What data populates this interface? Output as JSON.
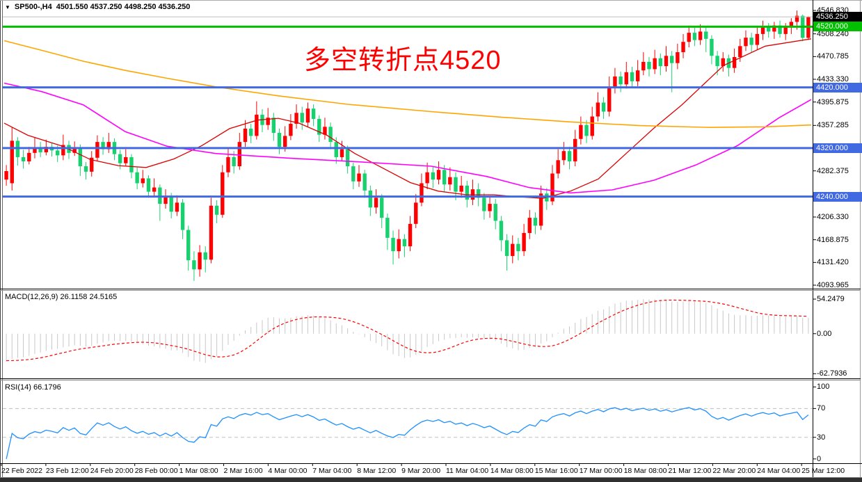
{
  "window": {
    "symbol_dropdown_icon": "▼",
    "symbol": "SP500-,H4",
    "ohlc_text": "4501.550 4537.250 4498.250 4536.250"
  },
  "annotation": {
    "text": "多空转折点4520",
    "color": "#ff0000"
  },
  "indicator_labels": {
    "macd": "MACD(12,26,9) 26.1158 24.5165",
    "rsi": "RSI(14) 66.1796"
  },
  "price_axis": {
    "ticks": [
      {
        "label": "4546.830",
        "price": 4546.83
      },
      {
        "label": "4508.240",
        "price": 4508.24
      },
      {
        "label": "4470.785",
        "price": 4470.785
      },
      {
        "label": "4433.330",
        "price": 4433.33
      },
      {
        "label": "4395.875",
        "price": 4395.875
      },
      {
        "label": "4357.285",
        "price": 4357.285
      },
      {
        "label": "4282.375",
        "price": 4282.375
      },
      {
        "label": "4206.330",
        "price": 4206.33
      },
      {
        "label": "4168.875",
        "price": 4168.875
      },
      {
        "label": "4131.420",
        "price": 4131.42
      },
      {
        "label": "4093.965",
        "price": 4093.965
      }
    ],
    "badges": [
      {
        "label": "4536.250",
        "price": 4536.25,
        "bg": "#000000"
      },
      {
        "label": "4520.000",
        "price": 4520.0,
        "bg": "#00c000"
      },
      {
        "label": "4420.000",
        "price": 4420.0,
        "bg": "#4169e1"
      },
      {
        "label": "4320.000",
        "price": 4320.0,
        "bg": "#4169e1"
      },
      {
        "label": "4240.000",
        "price": 4240.0,
        "bg": "#4169e1"
      }
    ]
  },
  "time_axis": {
    "labels": [
      "22 Feb 2022",
      "23 Feb 12:00",
      "24 Feb 20:00",
      "28 Feb 00:00",
      "1 Mar 08:00",
      "2 Mar 16:00",
      "4 Mar 00:00",
      "7 Mar 04:00",
      "8 Mar 12:00",
      "9 Mar 20:00",
      "11 Mar 04:00",
      "14 Mar 08:00",
      "15 Mar 16:00",
      "17 Mar 00:00",
      "18 Mar 08:00",
      "21 Mar 12:00",
      "22 Mar 20:00",
      "24 Mar 04:00",
      "25 Mar 12:00"
    ]
  },
  "macd_axis": [
    {
      "label": "54.2479",
      "value": 54.2479
    },
    {
      "label": "0.00",
      "value": 0
    },
    {
      "label": "-62.7936",
      "value": -62.7936
    }
  ],
  "rsi_axis": [
    {
      "label": "100",
      "value": 100
    },
    {
      "label": "70",
      "value": 70
    },
    {
      "label": "30",
      "value": 30
    },
    {
      "label": "0",
      "value": 0
    }
  ],
  "colors": {
    "bull": "#ff0000",
    "bear": "#18d16e",
    "ma_fast_red": "#dd0000",
    "ma_mid_magenta": "#ff00ff",
    "ma_slow_orange": "#ffa500",
    "hline_blue": "#4169e1",
    "hline_green": "#00c000",
    "current_price_line": "#c0c0c0",
    "macd_hist": "#c8c8c8",
    "macd_signal": "#ff0000",
    "rsi_line": "#1e90ff",
    "rsi_level": "#c0c0c0",
    "annotation_red": "#ff0000"
  },
  "chart_data": {
    "type": "candlestick",
    "title": "SP500-,H4",
    "symbol": "SP500-",
    "timeframe": "H4",
    "last_bar": {
      "open": 4501.55,
      "high": 4537.25,
      "low": 4498.25,
      "close": 4536.25
    },
    "price_range": {
      "top": 4546.83,
      "bottom": 4093.965
    },
    "current_price": 4536.25,
    "hlines": [
      {
        "price": 4520.0,
        "color": "#00c000",
        "width": 3,
        "name": "bull-bear-pivot"
      },
      {
        "price": 4420.0,
        "color": "#4169e1",
        "width": 3,
        "name": "resistance-4420"
      },
      {
        "price": 4320.0,
        "color": "#4169e1",
        "width": 3,
        "name": "level-4320"
      },
      {
        "price": 4240.0,
        "color": "#4169e1",
        "width": 3,
        "name": "support-4240"
      }
    ],
    "x_labels": [
      "22 Feb 2022",
      "23 Feb 12:00",
      "24 Feb 20:00",
      "28 Feb 00:00",
      "1 Mar 08:00",
      "2 Mar 16:00",
      "4 Mar 00:00",
      "7 Mar 04:00",
      "8 Mar 12:00",
      "9 Mar 20:00",
      "11 Mar 04:00",
      "14 Mar 08:00",
      "15 Mar 16:00",
      "17 Mar 00:00",
      "18 Mar 08:00",
      "21 Mar 12:00",
      "22 Mar 20:00",
      "24 Mar 04:00",
      "25 Mar 12:00"
    ],
    "candles": [
      [
        4268,
        4292,
        4258,
        4282
      ],
      [
        4262,
        4354,
        4250,
        4332
      ],
      [
        4332,
        4338,
        4291,
        4305
      ],
      [
        4305,
        4317,
        4286,
        4298
      ],
      [
        4298,
        4322,
        4293,
        4312
      ],
      [
        4312,
        4338,
        4303,
        4320
      ],
      [
        4320,
        4330,
        4305,
        4313
      ],
      [
        4313,
        4334,
        4308,
        4322
      ],
      [
        4322,
        4328,
        4306,
        4316
      ],
      [
        4316,
        4324,
        4297,
        4308
      ],
      [
        4308,
        4342,
        4300,
        4325
      ],
      [
        4325,
        4332,
        4302,
        4312
      ],
      [
        4312,
        4331,
        4307,
        4320
      ],
      [
        4320,
        4326,
        4274,
        4290
      ],
      [
        4290,
        4297,
        4268,
        4281
      ],
      [
        4281,
        4315,
        4273,
        4304
      ],
      [
        4304,
        4341,
        4298,
        4330
      ],
      [
        4330,
        4338,
        4309,
        4318
      ],
      [
        4318,
        4345,
        4312,
        4330
      ],
      [
        4330,
        4336,
        4300,
        4310
      ],
      [
        4310,
        4317,
        4285,
        4295
      ],
      [
        4295,
        4318,
        4290,
        4305
      ],
      [
        4305,
        4310,
        4270,
        4280
      ],
      [
        4280,
        4288,
        4252,
        4262
      ],
      [
        4262,
        4284,
        4255,
        4270
      ],
      [
        4270,
        4275,
        4238,
        4248
      ],
      [
        4248,
        4270,
        4240,
        4255
      ],
      [
        4255,
        4260,
        4200,
        4228
      ],
      [
        4228,
        4252,
        4220,
        4240
      ],
      [
        4240,
        4246,
        4204,
        4215
      ],
      [
        4215,
        4242,
        4208,
        4230
      ],
      [
        4230,
        4236,
        4170,
        4185
      ],
      [
        4185,
        4192,
        4118,
        4135
      ],
      [
        4135,
        4150,
        4101,
        4120
      ],
      [
        4120,
        4160,
        4108,
        4148
      ],
      [
        4148,
        4158,
        4115,
        4136
      ],
      [
        4136,
        4238,
        4130,
        4225
      ],
      [
        4225,
        4234,
        4196,
        4210
      ],
      [
        4210,
        4292,
        4205,
        4280
      ],
      [
        4280,
        4320,
        4272,
        4305
      ],
      [
        4305,
        4315,
        4278,
        4290
      ],
      [
        4290,
        4345,
        4284,
        4330
      ],
      [
        4330,
        4366,
        4322,
        4352
      ],
      [
        4352,
        4360,
        4328,
        4340
      ],
      [
        4340,
        4397,
        4334,
        4375
      ],
      [
        4375,
        4384,
        4346,
        4358
      ],
      [
        4358,
        4386,
        4350,
        4370
      ],
      [
        4370,
        4378,
        4332,
        4345
      ],
      [
        4345,
        4352,
        4310,
        4322
      ],
      [
        4322,
        4356,
        4314,
        4340
      ],
      [
        4340,
        4376,
        4333,
        4360
      ],
      [
        4360,
        4392,
        4352,
        4378
      ],
      [
        4378,
        4388,
        4350,
        4362
      ],
      [
        4362,
        4395,
        4354,
        4385
      ],
      [
        4385,
        4392,
        4356,
        4368
      ],
      [
        4368,
        4374,
        4330,
        4342
      ],
      [
        4342,
        4370,
        4334,
        4355
      ],
      [
        4355,
        4362,
        4318,
        4330
      ],
      [
        4330,
        4338,
        4294,
        4305
      ],
      [
        4305,
        4332,
        4298,
        4318
      ],
      [
        4318,
        4324,
        4278,
        4290
      ],
      [
        4290,
        4296,
        4252,
        4265
      ],
      [
        4265,
        4292,
        4256,
        4278
      ],
      [
        4278,
        4284,
        4238,
        4250
      ],
      [
        4250,
        4258,
        4208,
        4222
      ],
      [
        4222,
        4252,
        4212,
        4238
      ],
      [
        4238,
        4244,
        4188,
        4205
      ],
      [
        4205,
        4212,
        4152,
        4172
      ],
      [
        4172,
        4184,
        4128,
        4150
      ],
      [
        4150,
        4186,
        4138,
        4170
      ],
      [
        4170,
        4178,
        4140,
        4158
      ],
      [
        4158,
        4208,
        4150,
        4195
      ],
      [
        4195,
        4244,
        4188,
        4230
      ],
      [
        4230,
        4278,
        4224,
        4262
      ],
      [
        4262,
        4296,
        4252,
        4280
      ],
      [
        4280,
        4290,
        4254,
        4268
      ],
      [
        4268,
        4298,
        4260,
        4284
      ],
      [
        4284,
        4292,
        4248,
        4260
      ],
      [
        4260,
        4288,
        4250,
        4272
      ],
      [
        4272,
        4280,
        4234,
        4248
      ],
      [
        4248,
        4274,
        4238,
        4258
      ],
      [
        4258,
        4266,
        4222,
        4235
      ],
      [
        4235,
        4268,
        4226,
        4252
      ],
      [
        4252,
        4262,
        4224,
        4238
      ],
      [
        4238,
        4246,
        4202,
        4216
      ],
      [
        4216,
        4240,
        4205,
        4228
      ],
      [
        4228,
        4236,
        4186,
        4200
      ],
      [
        4200,
        4208,
        4150,
        4168
      ],
      [
        4168,
        4178,
        4118,
        4142
      ],
      [
        4142,
        4176,
        4130,
        4162
      ],
      [
        4162,
        4172,
        4135,
        4150
      ],
      [
        4150,
        4195,
        4142,
        4180
      ],
      [
        4180,
        4218,
        4170,
        4205
      ],
      [
        4205,
        4214,
        4178,
        4192
      ],
      [
        4192,
        4258,
        4185,
        4245
      ],
      [
        4245,
        4254,
        4218,
        4232
      ],
      [
        4232,
        4292,
        4226,
        4278
      ],
      [
        4278,
        4318,
        4270,
        4300
      ],
      [
        4300,
        4330,
        4292,
        4315
      ],
      [
        4315,
        4322,
        4285,
        4298
      ],
      [
        4298,
        4350,
        4290,
        4335
      ],
      [
        4335,
        4372,
        4326,
        4358
      ],
      [
        4358,
        4366,
        4328,
        4340
      ],
      [
        4340,
        4388,
        4334,
        4372
      ],
      [
        4372,
        4412,
        4364,
        4395
      ],
      [
        4395,
        4404,
        4368,
        4380
      ],
      [
        4380,
        4438,
        4372,
        4420
      ],
      [
        4420,
        4452,
        4410,
        4438
      ],
      [
        4438,
        4446,
        4412,
        4425
      ],
      [
        4425,
        4462,
        4418,
        4445
      ],
      [
        4445,
        4454,
        4420,
        4430
      ],
      [
        4430,
        4465,
        4422,
        4448
      ],
      [
        4448,
        4478,
        4440,
        4462
      ],
      [
        4462,
        4470,
        4438,
        4450
      ],
      [
        4450,
        4482,
        4442,
        4468
      ],
      [
        4468,
        4476,
        4440,
        4455
      ],
      [
        4455,
        4488,
        4446,
        4472
      ],
      [
        4472,
        4480,
        4412,
        4460
      ],
      [
        4460,
        4492,
        4450,
        4478
      ],
      [
        4478,
        4508,
        4468,
        4495
      ],
      [
        4495,
        4522,
        4486,
        4510
      ],
      [
        4510,
        4518,
        4488,
        4498
      ],
      [
        4498,
        4524,
        4490,
        4512
      ],
      [
        4512,
        4520,
        4478,
        4500
      ],
      [
        4500,
        4506,
        4458,
        4472
      ],
      [
        4472,
        4480,
        4440,
        4455
      ],
      [
        4455,
        4478,
        4446,
        4468
      ],
      [
        4468,
        4474,
        4438,
        4452
      ],
      [
        4452,
        4484,
        4444,
        4470
      ],
      [
        4470,
        4500,
        4462,
        4488
      ],
      [
        4488,
        4514,
        4480,
        4502
      ],
      [
        4502,
        4510,
        4478,
        4490
      ],
      [
        4490,
        4520,
        4482,
        4508
      ],
      [
        4508,
        4530,
        4498,
        4520
      ],
      [
        4520,
        4526,
        4502,
        4512
      ],
      [
        4512,
        4528,
        4500,
        4522
      ],
      [
        4522,
        4530,
        4502,
        4508
      ],
      [
        4508,
        4526,
        4498,
        4520
      ],
      [
        4520,
        4534,
        4508,
        4528
      ],
      [
        4528,
        4546.8,
        4515,
        4538
      ],
      [
        4538,
        4540,
        4496,
        4501.6
      ],
      [
        4501.55,
        4537.25,
        4498.25,
        4536.25
      ]
    ],
    "ma_orange_points": [
      [
        6,
        4497
      ],
      [
        60,
        4481
      ],
      [
        120,
        4463
      ],
      [
        180,
        4448
      ],
      [
        240,
        4435
      ],
      [
        310,
        4421
      ],
      [
        400,
        4406
      ],
      [
        500,
        4392
      ],
      [
        620,
        4380
      ],
      [
        720,
        4371
      ],
      [
        820,
        4363
      ],
      [
        920,
        4357
      ],
      [
        1020,
        4354
      ],
      [
        1100,
        4355
      ],
      [
        1166,
        4358
      ]
    ],
    "ma_magenta_points": [
      [
        6,
        4427
      ],
      [
        60,
        4413
      ],
      [
        120,
        4391
      ],
      [
        180,
        4347
      ],
      [
        240,
        4323
      ],
      [
        310,
        4311
      ],
      [
        420,
        4303
      ],
      [
        520,
        4297
      ],
      [
        620,
        4290
      ],
      [
        700,
        4273
      ],
      [
        760,
        4255
      ],
      [
        820,
        4246
      ],
      [
        880,
        4251
      ],
      [
        940,
        4267
      ],
      [
        1000,
        4292
      ],
      [
        1060,
        4324
      ],
      [
        1120,
        4370
      ],
      [
        1166,
        4400
      ]
    ],
    "ma_red_points": [
      [
        6,
        4361
      ],
      [
        40,
        4341
      ],
      [
        90,
        4323
      ],
      [
        130,
        4301
      ],
      [
        170,
        4291
      ],
      [
        210,
        4288
      ],
      [
        250,
        4302
      ],
      [
        290,
        4324
      ],
      [
        330,
        4352
      ],
      [
        370,
        4366
      ],
      [
        400,
        4369
      ],
      [
        430,
        4361
      ],
      [
        470,
        4341
      ],
      [
        510,
        4311
      ],
      [
        550,
        4287
      ],
      [
        590,
        4263
      ],
      [
        630,
        4249
      ],
      [
        670,
        4243
      ],
      [
        710,
        4243
      ],
      [
        740,
        4240
      ],
      [
        780,
        4237
      ],
      [
        820,
        4249
      ],
      [
        860,
        4269
      ],
      [
        900,
        4311
      ],
      [
        940,
        4353
      ],
      [
        980,
        4391
      ],
      [
        1040,
        4456
      ],
      [
        1100,
        4488
      ],
      [
        1166,
        4500
      ]
    ],
    "macd": {
      "fast": 12,
      "slow": 26,
      "signal": 9,
      "display_values": [
        26.1158,
        24.5165
      ],
      "axis_max": 54.2479,
      "axis_min": -62.7936
    },
    "rsi": {
      "period": 14,
      "display_value": 66.1796,
      "levels": [
        70,
        30
      ],
      "axis_range": [
        0,
        100
      ]
    }
  }
}
